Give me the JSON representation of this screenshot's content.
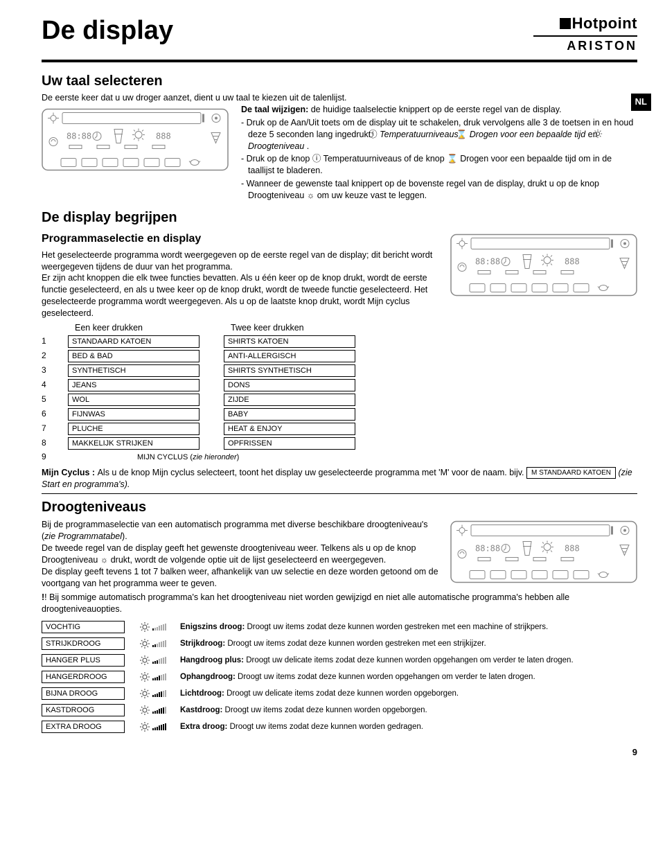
{
  "page": {
    "title": "De display",
    "brand_top": "Hotpoint",
    "brand_bottom": "ARISTON",
    "lang_badge": "NL",
    "page_number": "9"
  },
  "s1": {
    "title": "Uw taal selecteren",
    "intro": "De eerste keer dat u uw droger aanzet, dient u uw taal te kiezen uit de talenlijst.",
    "lead": "De taal wijzigen:",
    "lead_rest": " de huidige taalselectie knippert op de eerste regel van de display.",
    "b1a": "-  Druk op de Aan/Uit toets om de display uit te schakelen, druk vervolgens alle 3 de toetsen in en houd deze 5 seconden lang ingedrukt: ",
    "b1_temp": "Temperatuurniveaus",
    "b1b": ", ",
    "b1_dry": "Drogen voor een bepaalde tijd",
    "b1c": " en ",
    "b1_level": "Droogteniveau",
    "b1d": " .",
    "b2": "-  Druk op de knop ⓘ Temperatuurniveaus of de knop ⌛ Drogen voor een bepaalde tijd om in de taallijst te bladeren.",
    "b3": "-  Wanneer de gewenste taal knippert op de bovenste regel van de display, drukt u op de knop Droogteniveau ☼ om uw keuze vast te leggen."
  },
  "s2": {
    "title": "De display begrijpen",
    "subtitle": "Programmaselectie en display",
    "p1": "Het geselecteerde programma wordt weergegeven op de eerste regel van de display; dit bericht wordt weergegeven tijdens de duur van het programma.",
    "p2": "Er zijn acht knoppen die elk twee functies bevatten. Als u één keer op de knop drukt, wordt de eerste functie geselecteerd, en als u twee keer op de knop drukt, wordt de tweede functie geselecteerd. Het geselecteerde programma wordt weergegeven. Als u op de laatste knop drukt, wordt Mijn cyclus geselecteerd.",
    "col1": "Een keer drukken",
    "col2": "Twee keer drukken",
    "rows": [
      {
        "n": "1",
        "a": "STANDAARD KATOEN",
        "b": "SHIRTS KATOEN"
      },
      {
        "n": "2",
        "a": "BED & BAD",
        "b": "ANTI-ALLERGISCH"
      },
      {
        "n": "3",
        "a": "SYNTHETISCH",
        "b": "SHIRTS SYNTHETISCH"
      },
      {
        "n": "4",
        "a": "JEANS",
        "b": "DONS"
      },
      {
        "n": "5",
        "a": "WOL",
        "b": "ZIJDE"
      },
      {
        "n": "6",
        "a": "FIJNWAS",
        "b": "BABY"
      },
      {
        "n": "7",
        "a": "PLUCHE",
        "b": "HEAT & ENJOY"
      },
      {
        "n": "8",
        "a": "MAKKELIJK STRIJKEN",
        "b": "OPFRISSEN"
      }
    ],
    "row9_n": "9",
    "row9": "MIJN CYCLUS (zie hieronder)",
    "mijn_lead": "Mijn Cyclus : ",
    "mijn_text1": "Als u de knop Mijn cyclus selecteert, toont het display uw geselecteerde programma met 'M' voor de naam.  bijv. ",
    "mijn_box": "M  STANDAARD KATOEN",
    "mijn_text2": " (zie Start en programma's)."
  },
  "s3": {
    "title": "Droogteniveaus",
    "p1a": "Bij de programmaselectie van een automatisch programma met diverse beschikbare droogteniveau's (",
    "p1i": "zie Programmatabel",
    "p1b": ").",
    "p2": "De tweede regel van de display geeft het gewenste droogteniveau weer. Telkens als u op de knop Droogteniveau ☼ drukt, wordt de volgende optie uit de lijst geselecteerd en weergegeven.",
    "p3": "De display geeft tevens 1 tot 7 balken weer, afhankelijk van uw selectie en deze worden getoond om de voortgang van het programma weer te geven.",
    "warn": "! Bij sommige automatisch programma's kan het droogteniveau niet worden gewijzigd en niet alle automatische programma's hebben alle droogteniveauopties.",
    "levels": [
      {
        "label": "VOCHTIG",
        "bars": 1,
        "b": "Enigszins droog:",
        "d": " Droogt uw items zodat deze kunnen worden gestreken met een machine of strijkpers."
      },
      {
        "label": "STRIJKDROOG",
        "bars": 2,
        "b": "Strijkdroog:",
        "d": " Droogt uw items zodat deze kunnen worden gestreken met een strijkijzer."
      },
      {
        "label": "HANGER PLUS",
        "bars": 3,
        "b": "Hangdroog plus:",
        "d": " Droogt uw delicate items zodat deze kunnen worden opgehangen om verder te laten drogen."
      },
      {
        "label": "HANGERDROOG",
        "bars": 4,
        "b": "Ophangdroog:",
        "d": " Droogt uw items zodat deze kunnen worden opgehangen om verder te laten drogen."
      },
      {
        "label": "BIJNA DROOG",
        "bars": 5,
        "b": "Lichtdroog:",
        "d": " Droogt uw delicate items zodat deze kunnen worden opgeborgen."
      },
      {
        "label": "KASTDROOG",
        "bars": 6,
        "b": "Kastdroog:",
        "d": " Droogt uw items zodat deze kunnen worden opgeborgen."
      },
      {
        "label": "EXTRA DROOG",
        "bars": 7,
        "b": "Extra droog:",
        "d": " Droogt uw items zodat deze kunnen worden gedragen."
      }
    ]
  }
}
